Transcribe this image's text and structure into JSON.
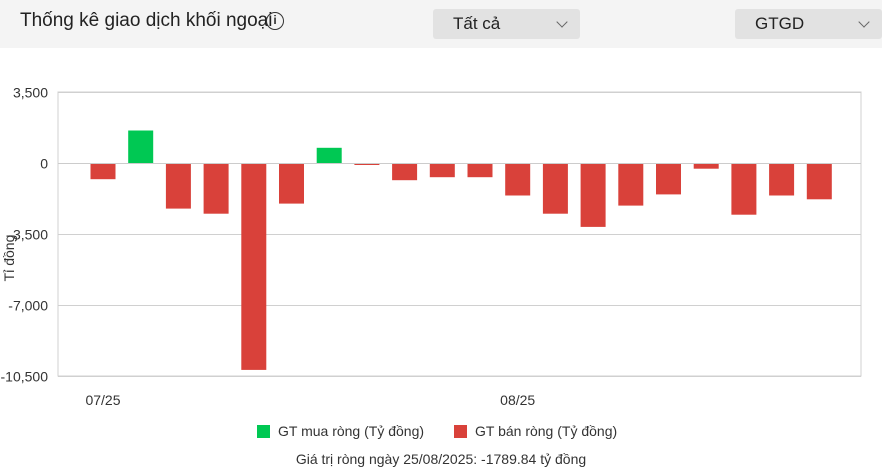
{
  "header": {
    "title": "Thống kê giao dịch khối ngoại",
    "filter_select": "Tất cả",
    "metric_select": "GTGD"
  },
  "colors": {
    "buy": "#00c853",
    "sell": "#d9413a"
  },
  "legend": {
    "buy_label": "GT mua ròng (Tỷ đồng)",
    "sell_label": "GT bán ròng (Tỷ đồng)"
  },
  "footer": "Giá trị ròng ngày 25/08/2025: -1789.84 tỷ đồng",
  "chart_data": {
    "type": "bar",
    "ylabel": "Tỉ đồng",
    "ylim": [
      -10500,
      3500
    ],
    "yticks": [
      3500,
      0,
      -3500,
      -7000,
      -10500
    ],
    "ytick_labels": [
      "3,500",
      "0",
      "-3,500",
      "-7,000",
      "-10,500"
    ],
    "x_tick_labels": [
      {
        "label": "07/25",
        "index": 0
      },
      {
        "label": "08/25",
        "index": 11
      }
    ],
    "grid": true,
    "legend_position": "bottom",
    "values": [
      -800,
      1600,
      -2250,
      -2500,
      -10200,
      -2000,
      750,
      -100,
      -850,
      -700,
      -700,
      -1600,
      -2500,
      -3150,
      -2100,
      -1550,
      -280,
      -2550,
      -1600,
      -1790
    ]
  }
}
